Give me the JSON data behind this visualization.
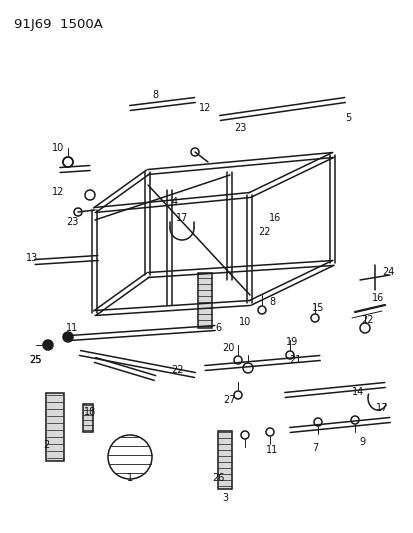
{
  "title": "91J69  1500A",
  "bg_color": "#ffffff",
  "lc": "#1a1a1a",
  "label_color": "#111111",
  "title_fontsize": 9.5,
  "label_fontsize": 7,
  "figsize": [
    4.14,
    5.33
  ],
  "dpi": 100
}
